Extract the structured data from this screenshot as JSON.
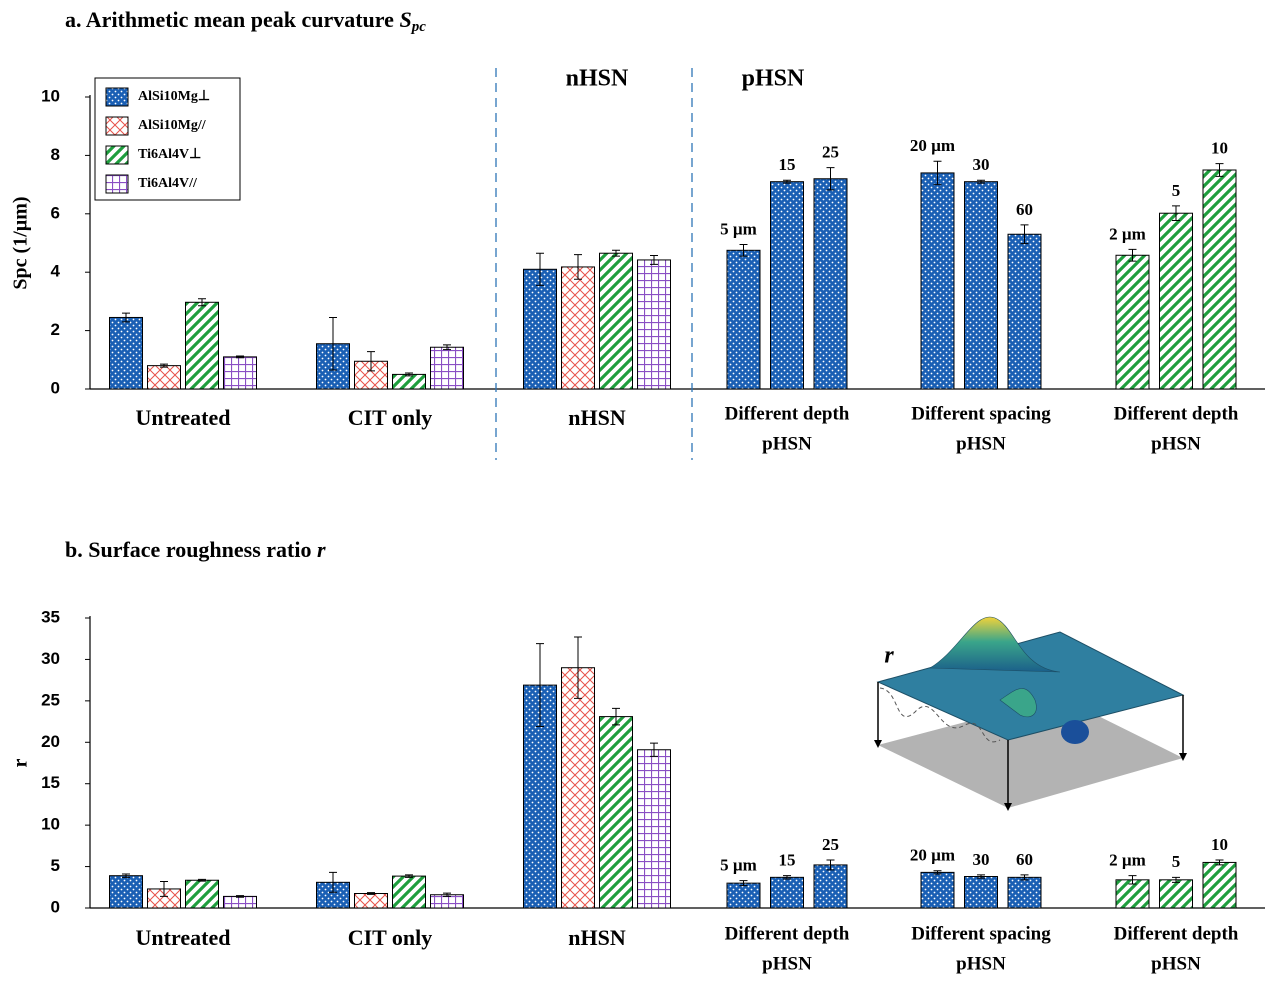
{
  "chart_data": [
    {
      "type": "bar",
      "title": "a. Arithmetic mean peak curvature ",
      "title_symbol": "S",
      "title_subscript": "pc",
      "ylabel": "Spc (1/µm)",
      "ylim": [
        0,
        10
      ],
      "yticks": [
        0,
        2,
        4,
        6,
        8,
        10
      ],
      "legend": "upper left",
      "series": [
        {
          "name": "AlSi10Mg⊥",
          "color": "#1a5fb4",
          "pattern": "dots"
        },
        {
          "name": "AlSi10Mg//",
          "color": "#e8524a",
          "pattern": "crosshatch"
        },
        {
          "name": "Ti6Al4V⊥",
          "color": "#1e9e3e",
          "pattern": "diagonal"
        },
        {
          "name": "Ti6Al4V//",
          "color": "#8a4fc4",
          "pattern": "grid"
        }
      ],
      "sections": [
        "nHSN",
        "pHSN"
      ],
      "groups": [
        {
          "label": [
            "Untreated"
          ],
          "series": [
            0,
            1,
            2,
            3
          ],
          "values": [
            2.45,
            0.8,
            2.97,
            1.1
          ],
          "errors": [
            0.15,
            0.05,
            0.12,
            0.03
          ]
        },
        {
          "label": [
            "CIT only"
          ],
          "series": [
            0,
            1,
            2,
            3
          ],
          "values": [
            1.55,
            0.95,
            0.5,
            1.43
          ],
          "errors": [
            0.9,
            0.33,
            0.05,
            0.08
          ]
        },
        {
          "label": [
            "nHSN"
          ],
          "series": [
            0,
            1,
            2,
            3
          ],
          "values": [
            4.1,
            4.18,
            4.65,
            4.42
          ],
          "errors": [
            0.55,
            0.42,
            0.1,
            0.15
          ]
        },
        {
          "label": [
            "Different depth",
            "pHSN"
          ],
          "series": [
            0,
            0,
            0
          ],
          "values": [
            4.75,
            7.1,
            7.2
          ],
          "errors": [
            0.2,
            0.05,
            0.38
          ],
          "bar_labels": [
            "5 µm",
            "15",
            "25"
          ]
        },
        {
          "label": [
            "Different spacing",
            "pHSN"
          ],
          "series": [
            0,
            0,
            0
          ],
          "values": [
            7.4,
            7.1,
            5.3
          ],
          "errors": [
            0.4,
            0.05,
            0.32
          ],
          "bar_labels": [
            "20 µm",
            "30",
            "60"
          ]
        },
        {
          "label": [
            "Different depth",
            "pHSN"
          ],
          "series": [
            2,
            2,
            2
          ],
          "values": [
            4.58,
            6.02,
            7.5
          ],
          "errors": [
            0.2,
            0.25,
            0.22
          ],
          "bar_labels": [
            "2 µm",
            "5",
            "10"
          ]
        }
      ]
    },
    {
      "type": "bar",
      "title": "b. Surface roughness ratio ",
      "title_symbol": "r",
      "ylabel": "r",
      "ylim": [
        0,
        35
      ],
      "yticks": [
        0,
        5,
        10,
        15,
        20,
        25,
        30,
        35
      ],
      "inset_label": "r",
      "groups": [
        {
          "label": [
            "Untreated"
          ],
          "series": [
            0,
            1,
            2,
            3
          ],
          "values": [
            3.9,
            2.3,
            3.35,
            1.4
          ],
          "errors": [
            0.2,
            0.9,
            0.1,
            0.1
          ]
        },
        {
          "label": [
            "CIT only"
          ],
          "series": [
            0,
            1,
            2,
            3
          ],
          "values": [
            3.1,
            1.75,
            3.85,
            1.6
          ],
          "errors": [
            1.2,
            0.1,
            0.15,
            0.2
          ]
        },
        {
          "label": [
            "nHSN"
          ],
          "series": [
            0,
            1,
            2,
            3
          ],
          "values": [
            26.9,
            29.0,
            23.1,
            19.1
          ],
          "errors": [
            5,
            3.7,
            1,
            0.8
          ]
        },
        {
          "label": [
            "Different depth",
            "pHSN"
          ],
          "series": [
            0,
            0,
            0
          ],
          "values": [
            3.0,
            3.7,
            5.2
          ],
          "errors": [
            0.3,
            0.2,
            0.6
          ],
          "bar_labels": [
            "5 µm",
            "15",
            "25"
          ]
        },
        {
          "label": [
            "Different spacing",
            "pHSN"
          ],
          "series": [
            0,
            0,
            0
          ],
          "values": [
            4.3,
            3.8,
            3.7
          ],
          "errors": [
            0.2,
            0.2,
            0.3
          ],
          "bar_labels": [
            "20 µm",
            "30",
            "60"
          ]
        },
        {
          "label": [
            "Different depth",
            "pHSN"
          ],
          "series": [
            2,
            2,
            2
          ],
          "values": [
            3.4,
            3.4,
            5.5
          ],
          "errors": [
            0.5,
            0.3,
            0.3
          ],
          "bar_labels": [
            "2 µm",
            "5",
            "10"
          ]
        }
      ]
    }
  ]
}
